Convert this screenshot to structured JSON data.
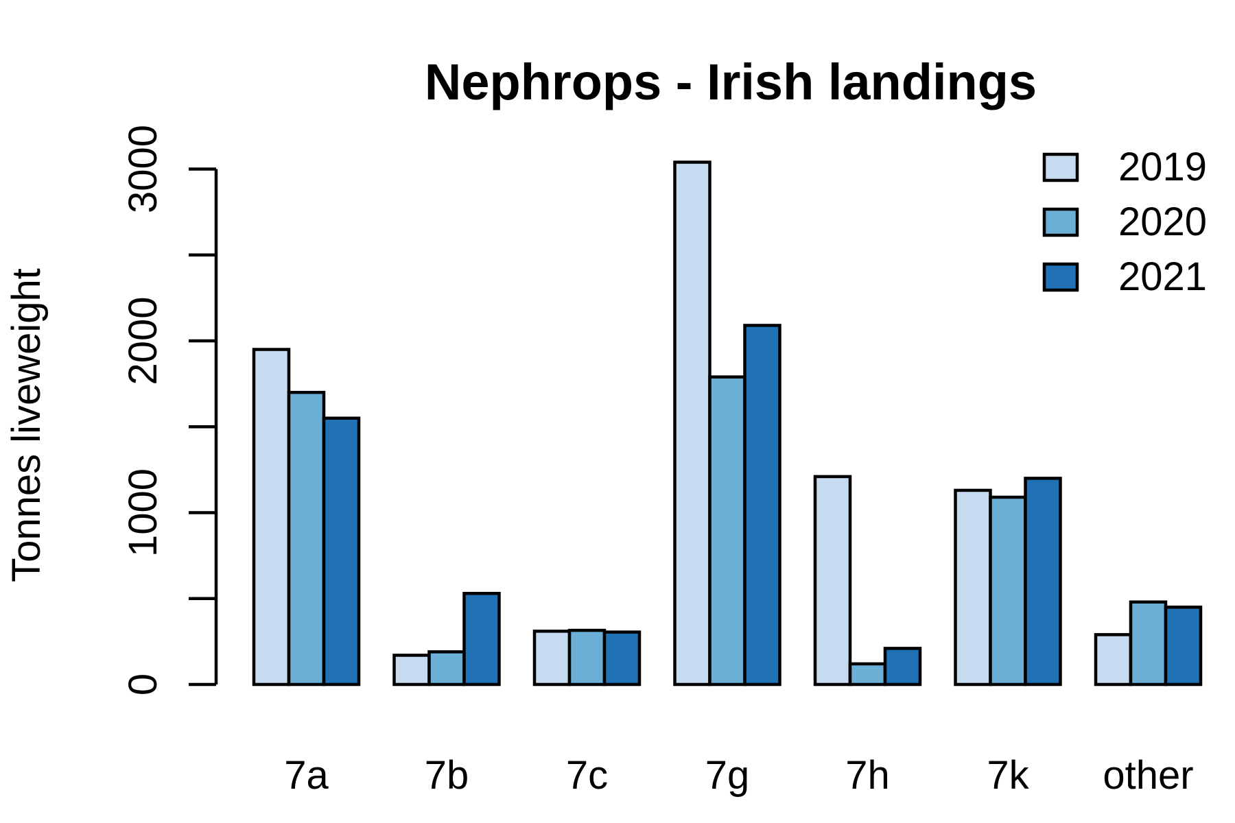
{
  "chart_data": {
    "type": "bar",
    "title": "Nephrops - Irish landings",
    "xlabel": "",
    "ylabel": "Tonnes liveweight",
    "categories": [
      "7a",
      "7b",
      "7c",
      "7g",
      "7h",
      "7k",
      "other"
    ],
    "series": [
      {
        "name": "2019",
        "color": "#c6dbef",
        "values": [
          1950,
          170,
          310,
          3040,
          1210,
          1130,
          290
        ]
      },
      {
        "name": "2020",
        "color": "#6baed6",
        "values": [
          1700,
          190,
          315,
          1790,
          120,
          1090,
          480
        ]
      },
      {
        "name": "2021",
        "color": "#2171b5",
        "values": [
          1550,
          530,
          305,
          2090,
          210,
          1200,
          450
        ]
      }
    ],
    "yticks": [
      0,
      500,
      1000,
      1500,
      2000,
      2500,
      3000
    ],
    "ytick_labels": [
      "0",
      "",
      "1000",
      "",
      "2000",
      "",
      "3000"
    ],
    "ylim": [
      0,
      3100
    ],
    "grid": false,
    "legend_position": "top-right"
  }
}
